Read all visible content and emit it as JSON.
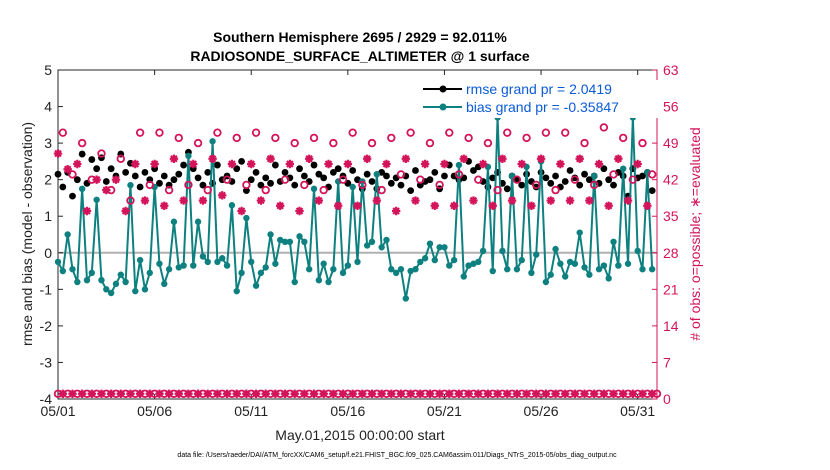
{
  "chart_data": {
    "type": "line",
    "title": "Southern Hemisphere 2695 / 2929 = 92.011%",
    "subtitle": "RADIOSONDE_SURFACE_ALTIMETER @ 1 surface",
    "xlabel": "May.01,2015 00:00:00 start",
    "ylabel": "rmse and bias (model - observation)",
    "ylabel_right": "# of obs: o=possible; ∗=evaluated",
    "xlim": [
      0,
      31
    ],
    "ylim": [
      -4,
      5
    ],
    "ylim_right": [
      0,
      63
    ],
    "x_tick_values": [
      0,
      5,
      10,
      15,
      20,
      25,
      30
    ],
    "x_tick_labels": [
      "05/01",
      "05/06",
      "05/11",
      "05/16",
      "05/21",
      "05/26",
      "05/31"
    ],
    "y_ticks": [
      -4,
      -3,
      -2,
      -1,
      0,
      1,
      2,
      3,
      4,
      5
    ],
    "y_ticks_right": [
      0,
      7,
      14,
      21,
      28,
      35,
      42,
      49,
      56,
      63
    ],
    "legend": [
      {
        "name": "rmse grand pr = 2.0419",
        "color": "#000000",
        "marker": "circle"
      },
      {
        "name": "bias grand pr = -0.35847",
        "color": "#0f8080",
        "marker": "circle"
      }
    ],
    "series": [
      {
        "name": "rmse",
        "axis": "left",
        "color": "#000000",
        "x": [
          0.0,
          0.25,
          0.5,
          0.75,
          1.0,
          1.25,
          1.5,
          1.75,
          2.0,
          2.25,
          2.5,
          2.75,
          3.0,
          3.25,
          3.5,
          3.75,
          4.0,
          4.25,
          4.5,
          4.75,
          5.0,
          5.25,
          5.5,
          5.75,
          6.0,
          6.25,
          6.5,
          6.75,
          7.0,
          7.25,
          7.5,
          7.75,
          8.0,
          8.25,
          8.5,
          8.75,
          9.0,
          9.25,
          9.5,
          9.75,
          10.0,
          10.25,
          10.5,
          10.75,
          11.0,
          11.25,
          11.5,
          11.75,
          12.0,
          12.25,
          12.5,
          12.75,
          13.0,
          13.25,
          13.5,
          13.75,
          14.0,
          14.25,
          14.5,
          14.75,
          15.0,
          15.25,
          15.5,
          15.75,
          16.0,
          16.25,
          16.5,
          16.75,
          17.0,
          17.25,
          17.5,
          17.75,
          18.0,
          18.25,
          18.5,
          18.75,
          19.0,
          19.25,
          19.5,
          19.75,
          20.0,
          20.25,
          20.5,
          20.75,
          21.0,
          21.25,
          21.5,
          21.75,
          22.0,
          22.25,
          22.5,
          22.75,
          23.0,
          23.25,
          23.5,
          23.75,
          24.0,
          24.25,
          24.5,
          24.75,
          25.0,
          25.25,
          25.5,
          25.75,
          26.0,
          26.25,
          26.5,
          26.75,
          27.0,
          27.25,
          27.5,
          27.75,
          28.0,
          28.25,
          28.5,
          28.75,
          29.0,
          29.25,
          29.5,
          29.75,
          30.0,
          30.25,
          30.5,
          30.75
        ],
        "values": [
          2.15,
          1.8,
          2.2,
          1.55,
          2.0,
          2.7,
          1.9,
          2.55,
          2.3,
          2.6,
          1.95,
          2.3,
          2.1,
          2.7,
          2.2,
          2.45,
          2.1,
          1.8,
          2.2,
          2.0,
          2.3,
          1.9,
          2.1,
          1.85,
          2.0,
          2.15,
          2.4,
          2.75,
          2.3,
          2.05,
          1.85,
          2.2,
          1.9,
          2.4,
          2.0,
          2.1,
          1.95,
          2.3,
          2.5,
          1.7,
          2.0,
          2.2,
          1.85,
          2.05,
          1.9,
          2.4,
          1.95,
          2.2,
          2.05,
          1.85,
          2.3,
          2.1,
          1.95,
          2.4,
          2.15,
          2.05,
          1.8,
          2.2,
          2.3,
          2.1,
          1.9,
          2.25,
          2.0,
          1.75,
          2.15,
          1.95,
          1.75,
          2.2,
          2.1,
          1.9,
          2.05,
          1.85,
          2.1,
          1.7,
          2.25,
          1.85,
          1.95,
          2.0,
          2.2,
          1.75,
          2.1,
          2.4,
          2.1,
          2.0,
          2.05,
          2.5,
          2.25,
          2.35,
          1.95,
          1.8,
          2.05,
          2.2,
          1.9,
          1.75,
          2.1,
          2.0,
          1.85,
          2.15,
          1.95,
          1.8,
          2.2,
          2.05,
          1.9,
          2.1,
          1.8,
          1.95,
          2.25,
          2.05,
          1.85,
          2.15,
          2.0,
          2.1,
          1.9,
          2.3,
          2.0,
          1.85,
          2.2,
          2.1,
          1.55,
          2.3,
          2.05,
          2.1,
          2.2,
          1.7
        ]
      },
      {
        "name": "bias",
        "axis": "left",
        "color": "#0f8080",
        "x": [
          0.0,
          0.25,
          0.5,
          0.75,
          1.0,
          1.25,
          1.5,
          1.75,
          2.0,
          2.25,
          2.5,
          2.75,
          3.0,
          3.25,
          3.5,
          3.75,
          4.0,
          4.25,
          4.5,
          4.75,
          5.0,
          5.25,
          5.5,
          5.75,
          6.0,
          6.25,
          6.5,
          6.75,
          7.0,
          7.25,
          7.5,
          7.75,
          8.0,
          8.25,
          8.5,
          8.75,
          9.0,
          9.25,
          9.5,
          9.75,
          10.0,
          10.25,
          10.5,
          10.75,
          11.0,
          11.25,
          11.5,
          11.75,
          12.0,
          12.25,
          12.5,
          12.75,
          13.0,
          13.25,
          13.5,
          13.75,
          14.0,
          14.25,
          14.5,
          14.75,
          15.0,
          15.25,
          15.5,
          15.75,
          16.0,
          16.25,
          16.5,
          16.75,
          17.0,
          17.25,
          17.5,
          17.75,
          18.0,
          18.25,
          18.5,
          18.75,
          19.0,
          19.25,
          19.5,
          19.75,
          20.0,
          20.25,
          20.5,
          20.75,
          21.0,
          21.25,
          21.5,
          21.75,
          22.0,
          22.25,
          22.5,
          22.75,
          23.0,
          23.25,
          23.5,
          23.75,
          24.0,
          24.25,
          24.5,
          24.75,
          25.0,
          25.25,
          25.5,
          25.75,
          26.0,
          26.25,
          26.5,
          26.75,
          27.0,
          27.25,
          27.5,
          27.75,
          28.0,
          28.25,
          28.5,
          28.75,
          29.0,
          29.25,
          29.5,
          29.75,
          30.0,
          30.25,
          30.5,
          30.75
        ],
        "values": [
          -0.25,
          -0.5,
          0.5,
          -0.45,
          -0.8,
          1.75,
          -0.75,
          -0.55,
          1.45,
          -0.75,
          -1.0,
          -1.1,
          -0.85,
          -0.6,
          -0.8,
          1.85,
          -1.05,
          -0.2,
          -1.0,
          -0.55,
          1.8,
          -0.3,
          -0.85,
          -0.45,
          0.85,
          -0.4,
          -0.35,
          2.65,
          -0.35,
          0.85,
          -0.1,
          -0.25,
          3.05,
          -0.25,
          -0.15,
          -0.35,
          1.3,
          -1.05,
          -0.55,
          0.95,
          -0.25,
          -0.9,
          -0.55,
          -0.4,
          0.5,
          -0.3,
          0.35,
          0.3,
          0.3,
          -0.8,
          0.45,
          0.3,
          -0.45,
          1.75,
          -0.75,
          -0.3,
          -0.8,
          -0.45,
          1.95,
          -0.55,
          -0.35,
          1.8,
          -0.25,
          1.95,
          0.2,
          0.3,
          2.15,
          0.15,
          0.35,
          -0.45,
          -0.55,
          -0.45,
          -1.25,
          -0.5,
          -0.45,
          -0.25,
          -0.15,
          0.25,
          -0.2,
          0.15,
          0.15,
          -0.35,
          -0.2,
          2.4,
          -0.65,
          -0.35,
          -0.3,
          -0.25,
          0.05,
          2.35,
          -0.5,
          3.7,
          0.05,
          -0.45,
          2.1,
          -0.45,
          -0.2,
          2.35,
          -0.55,
          -0.05,
          2.5,
          -0.8,
          -0.6,
          0.1,
          -0.3,
          -0.65,
          -0.25,
          -0.3,
          0.55,
          -0.4,
          -0.6,
          2.1,
          -0.45,
          -0.35,
          -0.7,
          0.3,
          -0.35,
          2.3,
          -0.3,
          3.7,
          0.05,
          -0.45,
          2.2,
          -0.45
        ]
      },
      {
        "name": "possible",
        "axis": "right",
        "color": "#d4145a",
        "marker": "o",
        "x": [
          0.25,
          0.75,
          1.25,
          1.75,
          2.25,
          2.75,
          3.25,
          3.75,
          4.25,
          4.75,
          5.25,
          5.75,
          6.25,
          6.75,
          7.25,
          7.75,
          8.25,
          8.75,
          9.25,
          9.75,
          10.25,
          10.75,
          11.25,
          11.75,
          12.25,
          12.75,
          13.25,
          13.75,
          14.25,
          14.75,
          15.25,
          15.75,
          16.25,
          16.75,
          17.25,
          17.75,
          18.25,
          18.75,
          19.25,
          19.75,
          20.25,
          20.75,
          21.25,
          21.75,
          22.25,
          22.75,
          23.25,
          23.75,
          24.25,
          24.75,
          25.25,
          25.75,
          26.25,
          26.75,
          27.25,
          27.75,
          28.25,
          28.75,
          29.25,
          29.75,
          30.25,
          30.75
        ],
        "values": [
          51,
          43,
          49,
          42,
          47,
          40,
          46,
          38,
          51,
          41,
          51,
          40,
          50,
          41,
          49,
          40,
          51,
          42,
          50,
          41,
          51,
          40,
          50,
          42,
          49,
          41,
          50,
          40,
          49,
          42,
          51,
          41,
          49,
          40,
          50,
          43,
          51,
          42,
          49,
          41,
          51,
          43,
          50,
          42,
          49,
          40,
          51,
          42,
          50,
          41,
          51,
          40,
          51,
          42,
          49,
          41,
          52,
          43,
          50,
          42,
          49,
          43
        ]
      },
      {
        "name": "evaluated",
        "axis": "right",
        "color": "#d4145a",
        "marker": "*",
        "x": [
          0.0,
          0.5,
          1.0,
          1.5,
          2.0,
          2.5,
          3.0,
          3.5,
          4.0,
          4.5,
          5.0,
          5.5,
          6.0,
          6.5,
          7.0,
          7.5,
          8.0,
          8.5,
          9.0,
          9.5,
          10.0,
          10.5,
          11.0,
          11.5,
          12.0,
          12.5,
          13.0,
          13.5,
          14.0,
          14.5,
          15.0,
          15.5,
          16.0,
          16.5,
          17.0,
          17.5,
          18.0,
          18.5,
          19.0,
          19.5,
          20.0,
          20.5,
          21.0,
          21.5,
          22.0,
          22.5,
          23.0,
          23.5,
          24.0,
          24.5,
          25.0,
          25.5,
          26.0,
          26.5,
          27.0,
          27.5,
          28.0,
          28.5,
          29.0,
          29.5,
          30.0,
          30.5
        ],
        "values": [
          47,
          44,
          45,
          36,
          42,
          40,
          42,
          36,
          45,
          38,
          45,
          37,
          46,
          38,
          45,
          38,
          46,
          39,
          45,
          36,
          45,
          38,
          46,
          37,
          45,
          36,
          46,
          38,
          45,
          37,
          45,
          37,
          46,
          38,
          45,
          36,
          46,
          38,
          45,
          37,
          45,
          37,
          46,
          38,
          45,
          37,
          46,
          38,
          45,
          37,
          46,
          38,
          45,
          38,
          46,
          38,
          45,
          37,
          46,
          38,
          45,
          37
        ]
      },
      {
        "name": "possible_low",
        "axis": "right",
        "color": "#d4145a",
        "marker": "o",
        "x": [
          0.0,
          0.5,
          1.0,
          1.5,
          2.0,
          2.5,
          3.0,
          3.5,
          4.0,
          4.5,
          5.0,
          5.5,
          6.0,
          6.5,
          7.0,
          7.5,
          8.0,
          8.5,
          9.0,
          9.5,
          10.0,
          10.5,
          11.0,
          11.5,
          12.0,
          12.5,
          13.0,
          13.5,
          14.0,
          14.5,
          15.0,
          15.5,
          16.0,
          16.5,
          17.0,
          17.5,
          18.0,
          18.5,
          19.0,
          19.5,
          20.0,
          20.5,
          21.0,
          21.5,
          22.0,
          22.5,
          23.0,
          23.5,
          24.0,
          24.5,
          25.0,
          25.5,
          26.0,
          26.5,
          27.0,
          27.5,
          28.0,
          28.5,
          29.0,
          29.5,
          30.0,
          30.5,
          31.0
        ],
        "values": [
          1,
          1,
          1,
          1,
          1,
          1,
          1,
          1,
          1,
          1,
          1,
          1,
          1,
          1,
          1,
          1,
          1,
          1,
          1,
          1,
          1,
          1,
          1,
          1,
          1,
          1,
          1,
          1,
          1,
          1,
          1,
          1,
          1,
          1,
          1,
          1,
          1,
          1,
          1,
          1,
          1,
          1,
          1,
          1,
          1,
          1,
          1,
          1,
          1,
          1,
          1,
          1,
          1,
          1,
          1,
          1,
          1,
          1,
          1,
          1,
          1,
          1,
          1
        ]
      },
      {
        "name": "evaluated_low",
        "axis": "right",
        "color": "#d4145a",
        "marker": "*",
        "x": [
          0.25,
          0.75,
          1.25,
          1.75,
          2.25,
          2.75,
          3.25,
          3.75,
          4.25,
          4.75,
          5.25,
          5.75,
          6.25,
          6.75,
          7.25,
          7.75,
          8.25,
          8.75,
          9.25,
          9.75,
          10.25,
          10.75,
          11.25,
          11.75,
          12.25,
          12.75,
          13.25,
          13.75,
          14.25,
          14.75,
          15.25,
          15.75,
          16.25,
          16.75,
          17.25,
          17.75,
          18.25,
          18.75,
          19.25,
          19.75,
          20.25,
          20.75,
          21.25,
          21.75,
          22.25,
          22.75,
          23.25,
          23.75,
          24.25,
          24.75,
          25.25,
          25.75,
          26.25,
          26.75,
          27.25,
          27.75,
          28.25,
          28.75,
          29.25,
          29.75,
          30.25,
          30.75
        ],
        "values": [
          1,
          1,
          1,
          1,
          1,
          1,
          1,
          1,
          1,
          1,
          1,
          1,
          1,
          1,
          1,
          1,
          1,
          1,
          1,
          1,
          1,
          1,
          1,
          1,
          1,
          1,
          1,
          1,
          1,
          1,
          1,
          1,
          1,
          1,
          1,
          1,
          1,
          1,
          1,
          1,
          1,
          1,
          1,
          1,
          1,
          1,
          1,
          1,
          1,
          1,
          1,
          1,
          1,
          1,
          1,
          1,
          1,
          1,
          1,
          1,
          1,
          1
        ]
      }
    ],
    "grid": false,
    "legend_position": "top-right"
  },
  "footer": "data file: /Users/raeder/DAI/ATM_forcXX/CAM6_setup/f.e21.FHIST_BGC.f09_025.CAM6assim.011/Diags_NTrS_2015-05/obs_diag_output.nc"
}
